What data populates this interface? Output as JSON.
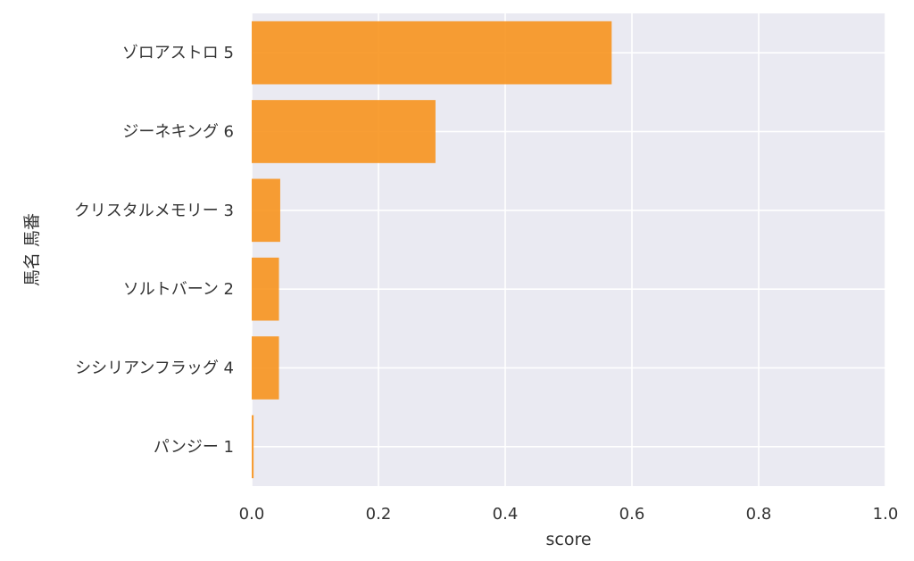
{
  "chart_data": {
    "type": "bar",
    "orientation": "horizontal",
    "categories": [
      "ゾロアストロ 5",
      "ジーネキング 6",
      "クリスタルメモリー 3",
      "ソルトバーン 2",
      "シシリアンフラッグ 4",
      "パンジー 1"
    ],
    "values": [
      0.568,
      0.29,
      0.045,
      0.043,
      0.043,
      0.003
    ],
    "xlabel": "score",
    "ylabel": "馬名 馬番",
    "xlim": [
      0,
      1.0
    ],
    "xticks": [
      "0.0",
      "0.2",
      "0.4",
      "0.6",
      "0.8",
      "1.0"
    ],
    "grid": true,
    "bar_color": "#f7931e",
    "plot_background": "#eaeaf2"
  }
}
